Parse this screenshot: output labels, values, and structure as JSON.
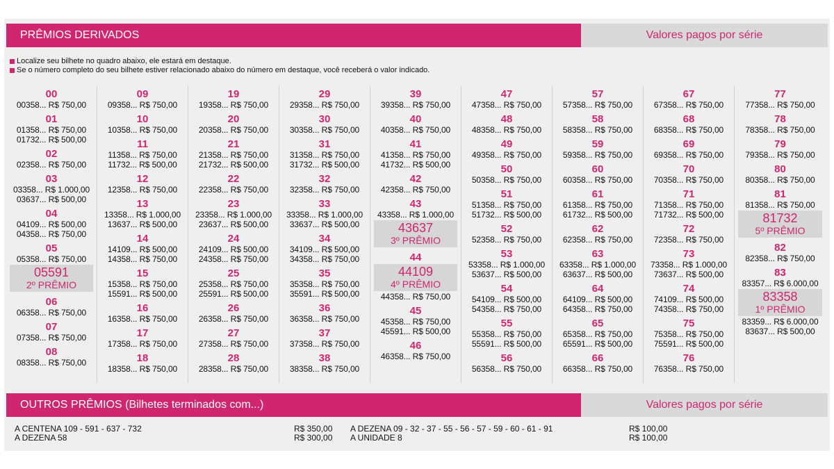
{
  "header": {
    "title": "PRÊMIOS DERIVADOS",
    "right": "Valores pagos por série"
  },
  "notes": [
    "Localize seu bilhete no quadro abaixo, ele estará em destaque.",
    "Se o número completo do seu bilhete estiver relacionado abaixo do número em destaque, você receberá o valor indicado."
  ],
  "columns": [
    [
      {
        "n": "00",
        "t": [
          "00358... R$ 750,00"
        ]
      },
      {
        "n": "01",
        "t": [
          "01358... R$ 750,00",
          "01732... R$ 500,00"
        ]
      },
      {
        "n": "02",
        "t": [
          "02358... R$ 750,00"
        ]
      },
      {
        "n": "03",
        "t": [
          "03358... R$ 1.000,00",
          "03637... R$ 500,00"
        ]
      },
      {
        "n": "04",
        "t": [
          "04109... R$ 500,00",
          "04358... R$ 750,00"
        ]
      },
      {
        "n": "05",
        "t": [
          "05358... R$ 750,00"
        ],
        "hl": {
          "num": "05591",
          "label": "2º PRÊMIO"
        }
      },
      {
        "n": "06",
        "t": [
          "06358... R$ 750,00"
        ]
      },
      {
        "n": "07",
        "t": [
          "07358... R$ 750,00"
        ]
      },
      {
        "n": "08",
        "t": [
          "08358... R$ 750,00"
        ]
      }
    ],
    [
      {
        "n": "09",
        "t": [
          "09358... R$ 750,00"
        ]
      },
      {
        "n": "10",
        "t": [
          "10358... R$ 750,00"
        ]
      },
      {
        "n": "11",
        "t": [
          "11358... R$ 750,00",
          "11732... R$ 500,00"
        ]
      },
      {
        "n": "12",
        "t": [
          "12358... R$ 750,00"
        ]
      },
      {
        "n": "13",
        "t": [
          "13358... R$ 1.000,00",
          "13637... R$ 500,00"
        ]
      },
      {
        "n": "14",
        "t": [
          "14109... R$ 500,00",
          "14358... R$ 750,00"
        ]
      },
      {
        "n": "15",
        "t": [
          "15358... R$ 750,00",
          "15591... R$ 500,00"
        ]
      },
      {
        "n": "16",
        "t": [
          "16358... R$ 750,00"
        ]
      },
      {
        "n": "17",
        "t": [
          "17358... R$ 750,00"
        ]
      },
      {
        "n": "18",
        "t": [
          "18358... R$ 750,00"
        ]
      }
    ],
    [
      {
        "n": "19",
        "t": [
          "19358... R$ 750,00"
        ]
      },
      {
        "n": "20",
        "t": [
          "20358... R$ 750,00"
        ]
      },
      {
        "n": "21",
        "t": [
          "21358... R$ 750,00",
          "21732... R$ 500,00"
        ]
      },
      {
        "n": "22",
        "t": [
          "22358... R$ 750,00"
        ]
      },
      {
        "n": "23",
        "t": [
          "23358... R$ 1.000,00",
          "23637... R$ 500,00"
        ]
      },
      {
        "n": "24",
        "t": [
          "24109... R$ 500,00",
          "24358... R$ 750,00"
        ]
      },
      {
        "n": "25",
        "t": [
          "25358... R$ 750,00",
          "25591... R$ 500,00"
        ]
      },
      {
        "n": "26",
        "t": [
          "26358... R$ 750,00"
        ]
      },
      {
        "n": "27",
        "t": [
          "27358... R$ 750,00"
        ]
      },
      {
        "n": "28",
        "t": [
          "28358... R$ 750,00"
        ]
      }
    ],
    [
      {
        "n": "29",
        "t": [
          "29358... R$ 750,00"
        ]
      },
      {
        "n": "30",
        "t": [
          "30358... R$ 750,00"
        ]
      },
      {
        "n": "31",
        "t": [
          "31358... R$ 750,00",
          "31732... R$ 500,00"
        ]
      },
      {
        "n": "32",
        "t": [
          "32358... R$ 750,00"
        ]
      },
      {
        "n": "33",
        "t": [
          "33358... R$ 1.000,00",
          "33637... R$ 500,00"
        ]
      },
      {
        "n": "34",
        "t": [
          "34109... R$ 500,00",
          "34358... R$ 750,00"
        ]
      },
      {
        "n": "35",
        "t": [
          "35358... R$ 750,00",
          "35591... R$ 500,00"
        ]
      },
      {
        "n": "36",
        "t": [
          "36358... R$ 750,00"
        ]
      },
      {
        "n": "37",
        "t": [
          "37358... R$ 750,00"
        ]
      },
      {
        "n": "38",
        "t": [
          "38358... R$ 750,00"
        ]
      }
    ],
    [
      {
        "n": "39",
        "t": [
          "39358... R$ 750,00"
        ]
      },
      {
        "n": "40",
        "t": [
          "40358... R$ 750,00"
        ]
      },
      {
        "n": "41",
        "t": [
          "41358... R$ 750,00",
          "41732... R$ 500,00"
        ]
      },
      {
        "n": "42",
        "t": [
          "42358... R$ 750,00"
        ]
      },
      {
        "n": "43",
        "t": [
          "43358... R$ 1.000,00"
        ],
        "hl": {
          "num": "43637",
          "label": "3º PRÊMIO"
        }
      },
      {
        "n": "44",
        "t": [],
        "hl": {
          "num": "44109",
          "label": "4º PRÊMIO"
        },
        "after": [
          "44358... R$ 750,00"
        ]
      },
      {
        "n": "45",
        "t": [
          "45358... R$ 750,00",
          "45591... R$ 500,00"
        ]
      },
      {
        "n": "46",
        "t": [
          "46358... R$ 750,00"
        ]
      }
    ],
    [
      {
        "n": "47",
        "t": [
          "47358... R$ 750,00"
        ]
      },
      {
        "n": "48",
        "t": [
          "48358... R$ 750,00"
        ]
      },
      {
        "n": "49",
        "t": [
          "49358... R$ 750,00"
        ]
      },
      {
        "n": "50",
        "t": [
          "50358... R$ 750,00"
        ]
      },
      {
        "n": "51",
        "t": [
          "51358... R$ 750,00",
          "51732... R$ 500,00"
        ]
      },
      {
        "n": "52",
        "t": [
          "52358... R$ 750,00"
        ]
      },
      {
        "n": "53",
        "t": [
          "53358... R$ 1.000,00",
          "53637... R$ 500,00"
        ]
      },
      {
        "n": "54",
        "t": [
          "54109... R$ 500,00",
          "54358... R$ 750,00"
        ]
      },
      {
        "n": "55",
        "t": [
          "55358... R$ 750,00",
          "55591... R$ 500,00"
        ]
      },
      {
        "n": "56",
        "t": [
          "56358... R$ 750,00"
        ]
      }
    ],
    [
      {
        "n": "57",
        "t": [
          "57358... R$ 750,00"
        ]
      },
      {
        "n": "58",
        "t": [
          "58358... R$ 750,00"
        ]
      },
      {
        "n": "59",
        "t": [
          "59358... R$ 750,00"
        ]
      },
      {
        "n": "60",
        "t": [
          "60358... R$ 750,00"
        ]
      },
      {
        "n": "61",
        "t": [
          "61358... R$ 750,00",
          "61732... R$ 500,00"
        ]
      },
      {
        "n": "62",
        "t": [
          "62358... R$ 750,00"
        ]
      },
      {
        "n": "63",
        "t": [
          "63358... R$ 1.000,00",
          "63637... R$ 500,00"
        ]
      },
      {
        "n": "64",
        "t": [
          "64109... R$ 500,00",
          "64358... R$ 750,00"
        ]
      },
      {
        "n": "65",
        "t": [
          "65358... R$ 750,00",
          "65591... R$ 500,00"
        ]
      },
      {
        "n": "66",
        "t": [
          "66358... R$ 750,00"
        ]
      }
    ],
    [
      {
        "n": "67",
        "t": [
          "67358... R$ 750,00"
        ]
      },
      {
        "n": "68",
        "t": [
          "68358... R$ 750,00"
        ]
      },
      {
        "n": "69",
        "t": [
          "69358... R$ 750,00"
        ]
      },
      {
        "n": "70",
        "t": [
          "70358... R$ 750,00"
        ]
      },
      {
        "n": "71",
        "t": [
          "71358... R$ 750,00",
          "71732... R$ 500,00"
        ]
      },
      {
        "n": "72",
        "t": [
          "72358... R$ 750,00"
        ]
      },
      {
        "n": "73",
        "t": [
          "73358... R$ 1.000,00",
          "73637... R$ 500,00"
        ]
      },
      {
        "n": "74",
        "t": [
          "74109... R$ 500,00",
          "74358... R$ 750,00"
        ]
      },
      {
        "n": "75",
        "t": [
          "75358... R$ 750,00",
          "75591... R$ 500,00"
        ]
      },
      {
        "n": "76",
        "t": [
          "76358... R$ 750,00"
        ]
      }
    ],
    [
      {
        "n": "77",
        "t": [
          "77358... R$ 750,00"
        ]
      },
      {
        "n": "78",
        "t": [
          "78358... R$ 750,00"
        ]
      },
      {
        "n": "79",
        "t": [
          "79358... R$ 750,00"
        ]
      },
      {
        "n": "80",
        "t": [
          "80358... R$ 750,00"
        ]
      },
      {
        "n": "81",
        "t": [
          "81358... R$ 750,00"
        ],
        "hl": {
          "num": "81732",
          "label": "5º PRÊMIO"
        }
      },
      {
        "n": "82",
        "t": [
          "82358... R$ 750,00"
        ]
      },
      {
        "n": "83",
        "t": [
          "83357... R$ 6.000,00"
        ],
        "hl": {
          "num": "83358",
          "label": "1º PRÊMIO"
        },
        "after": [
          "83359... R$ 6.000,00",
          "83637... R$ 500,00"
        ]
      }
    ]
  ],
  "others_header": {
    "title": "OUTROS PRÊMIOS (Bilhetes terminados com...)",
    "right": "Valores pagos por série"
  },
  "others": {
    "left_items": [
      "A CENTENA 109 - 591 - 637 - 732",
      "A DEZENA 58"
    ],
    "left_values": [
      "R$ 350,00",
      "R$ 300,00"
    ],
    "right_items": [
      "A DEZENA 09 - 32 - 37 - 55 - 56 - 57 - 59 - 60 - 61 - 91",
      "A UNIDADE 8"
    ],
    "right_values": [
      "R$ 100,00",
      "R$ 100,00"
    ]
  },
  "colors": {
    "accent": "#cf266f",
    "panel": "#efefef",
    "header_right_bg": "#d9d9d9",
    "highlight_bg": "#d6d6d6"
  }
}
